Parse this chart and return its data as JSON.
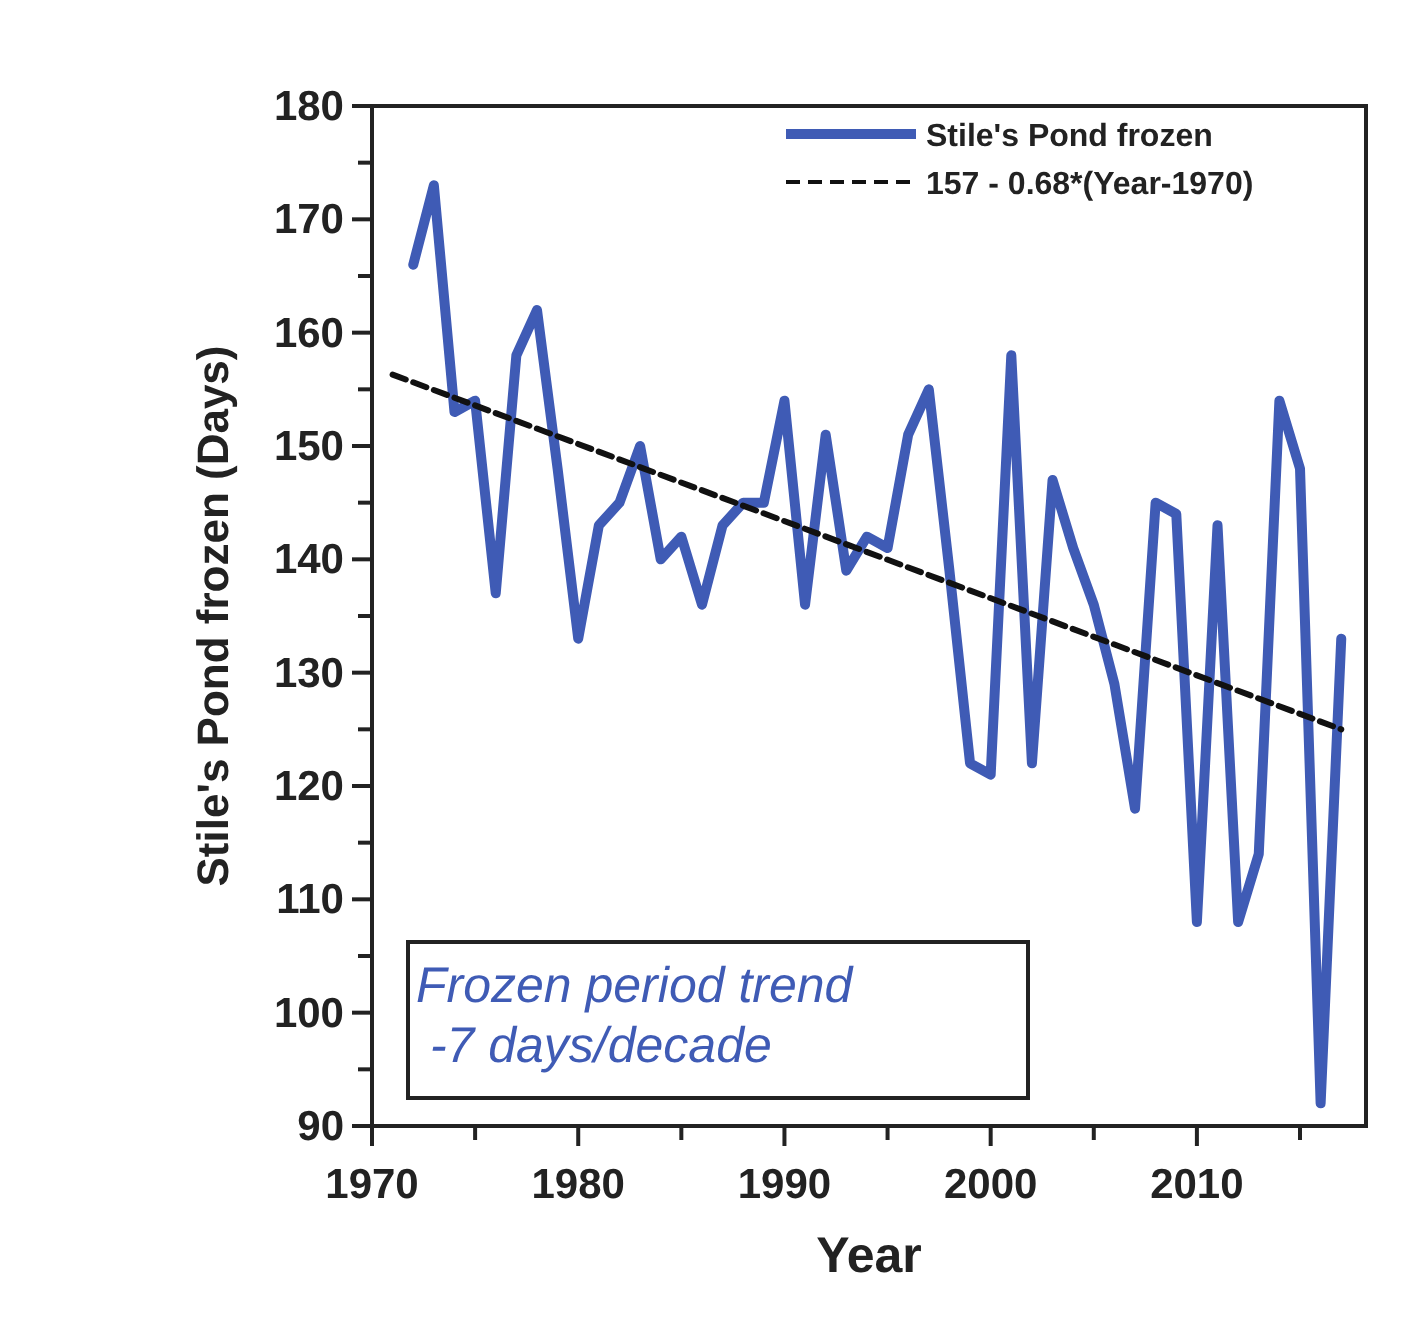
{
  "chart_data": {
    "type": "line",
    "xlabel": "Year",
    "ylabel": "Stile's Pond frozen (Days)",
    "xlim": [
      1970,
      2018.2
    ],
    "ylim": [
      90,
      180
    ],
    "xticks": [
      1970,
      {
        "value": 1975,
        "label": null
      },
      1980,
      {
        "value": 1985,
        "label": null
      },
      1990,
      {
        "value": 1995,
        "label": null
      },
      2000,
      {
        "value": 2005,
        "label": null
      },
      2010,
      {
        "value": 2015,
        "label": null
      }
    ],
    "yticks": [
      90,
      {
        "value": 95,
        "label": null
      },
      100,
      {
        "value": 105,
        "label": null
      },
      110,
      {
        "value": 115,
        "label": null
      },
      120,
      {
        "value": 125,
        "label": null
      },
      130,
      {
        "value": 135,
        "label": null
      },
      140,
      {
        "value": 145,
        "label": null
      },
      150,
      {
        "value": 155,
        "label": null
      },
      160,
      {
        "value": 165,
        "label": null
      },
      170,
      {
        "value": 175,
        "label": null
      },
      180
    ],
    "grid": false,
    "legend": "top right",
    "annotations": [
      "Frozen period trend\n -7 days/decade"
    ],
    "series": [
      {
        "name": "Stile's Pond frozen",
        "color": "#3f5bb5",
        "line_style": "solid",
        "x": [
          1972,
          1973,
          1974,
          1975,
          1976,
          1977,
          1978,
          1979,
          1980,
          1981,
          1982,
          1983,
          1984,
          1985,
          1986,
          1987,
          1988,
          1989,
          1990,
          1991,
          1992,
          1993,
          1994,
          1995,
          1996,
          1997,
          1998,
          1999,
          2000,
          2001,
          2002,
          2003,
          2004,
          2005,
          2006,
          2007,
          2008,
          2009,
          2010,
          2011,
          2012,
          2013,
          2014,
          2015,
          2016,
          2017
        ],
        "values": [
          166,
          173,
          153,
          154,
          137,
          158,
          162,
          148,
          133,
          143,
          145,
          150,
          140,
          142,
          136,
          143,
          145,
          145,
          154,
          136,
          151,
          139,
          142,
          141,
          151,
          155,
          139,
          122,
          121,
          158,
          122,
          147,
          141,
          136,
          129,
          118,
          145,
          144,
          108,
          143,
          108,
          114,
          154,
          148,
          92,
          133
        ]
      },
      {
        "name": "157 - 0.68*(Year-1970)",
        "color": "#111111",
        "line_style": "dashed",
        "x": [
          1971,
          2017
        ],
        "values": [
          156.3,
          125.0
        ]
      }
    ]
  }
}
